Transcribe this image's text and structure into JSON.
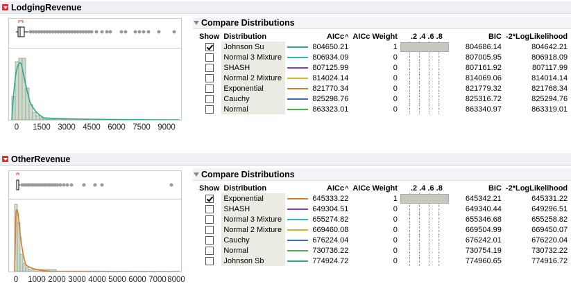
{
  "sections": [
    {
      "title": "LodgingRevenue",
      "axis_ticks": [
        "0",
        "1500",
        "3000",
        "4500",
        "6000",
        "7500",
        "9000"
      ],
      "compare": {
        "title": "Compare Distributions",
        "columns": [
          "Show",
          "Distribution",
          "AICc",
          "AICc Weight",
          ".2 .4 .6 .8",
          "BIC",
          "-2*LogLikelihood"
        ],
        "rows": [
          {
            "checked": true,
            "name": "Johnson Su",
            "color": "#2fa88a",
            "aicc": "804650.21",
            "weight": "1",
            "bic": "804686.14",
            "ll": "804642.21"
          },
          {
            "checked": false,
            "name": "Normal 3 Mixture",
            "color": "#2bb9c0",
            "aicc": "806934.09",
            "weight": "0",
            "bic": "807005.95",
            "ll": "806918.09"
          },
          {
            "checked": false,
            "name": "SHASH",
            "color": "#7b3fbf",
            "aicc": "807125.99",
            "weight": "0",
            "bic": "807161.92",
            "ll": "807117.99"
          },
          {
            "checked": false,
            "name": "Normal 2 Mixture",
            "color": "#c8b828",
            "aicc": "814024.14",
            "weight": "0",
            "bic": "814069.06",
            "ll": "814014.14"
          },
          {
            "checked": false,
            "name": "Exponential",
            "color": "#d97a2b",
            "aicc": "821770.34",
            "weight": "0",
            "bic": "821779.32",
            "ll": "821768.34"
          },
          {
            "checked": false,
            "name": "Cauchy",
            "color": "#3a68c0",
            "aicc": "825298.76",
            "weight": "0",
            "bic": "825316.72",
            "ll": "825294.76"
          },
          {
            "checked": false,
            "name": "Normal",
            "color": "#4caf50",
            "aicc": "863323.01",
            "weight": "0",
            "bic": "863340.97",
            "ll": "863319.01"
          }
        ]
      }
    },
    {
      "title": "OtherRevenue",
      "axis_ticks": [
        "0",
        "1000",
        "2000",
        "3000",
        "4000",
        "5000",
        "6000",
        "7000",
        "8000"
      ],
      "compare": {
        "title": "Compare Distributions",
        "columns": [
          "Show",
          "Distribution",
          "AICc",
          "AICc Weight",
          ".2 .4 .6 .8",
          "BIC",
          "-2*LogLikelihood"
        ],
        "rows": [
          {
            "checked": true,
            "name": "Exponential",
            "color": "#d97a2b",
            "aicc": "645333.22",
            "weight": "1",
            "bic": "645342.21",
            "ll": "645331.22"
          },
          {
            "checked": false,
            "name": "SHASH",
            "color": "#7b3fbf",
            "aicc": "649304.51",
            "weight": "0",
            "bic": "649340.44",
            "ll": "649296.51"
          },
          {
            "checked": false,
            "name": "Normal 3 Mixture",
            "color": "#2bb9c0",
            "aicc": "655274.82",
            "weight": "0",
            "bic": "655346.68",
            "ll": "655258.82"
          },
          {
            "checked": false,
            "name": "Normal 2 Mixture",
            "color": "#c8b828",
            "aicc": "669460.08",
            "weight": "0",
            "bic": "669504.99",
            "ll": "669450.07"
          },
          {
            "checked": false,
            "name": "Cauchy",
            "color": "#3a68c0",
            "aicc": "676224.04",
            "weight": "0",
            "bic": "676242.01",
            "ll": "676220.04"
          },
          {
            "checked": false,
            "name": "Normal",
            "color": "#4caf50",
            "aicc": "730736.22",
            "weight": "0",
            "bic": "730754.19",
            "ll": "730732.22"
          },
          {
            "checked": false,
            "name": "Johnson Sb",
            "color": "#2fa88a",
            "aicc": "774924.72",
            "weight": "0",
            "bic": "774960.65",
            "ll": "774916.72"
          }
        ]
      }
    }
  ]
}
